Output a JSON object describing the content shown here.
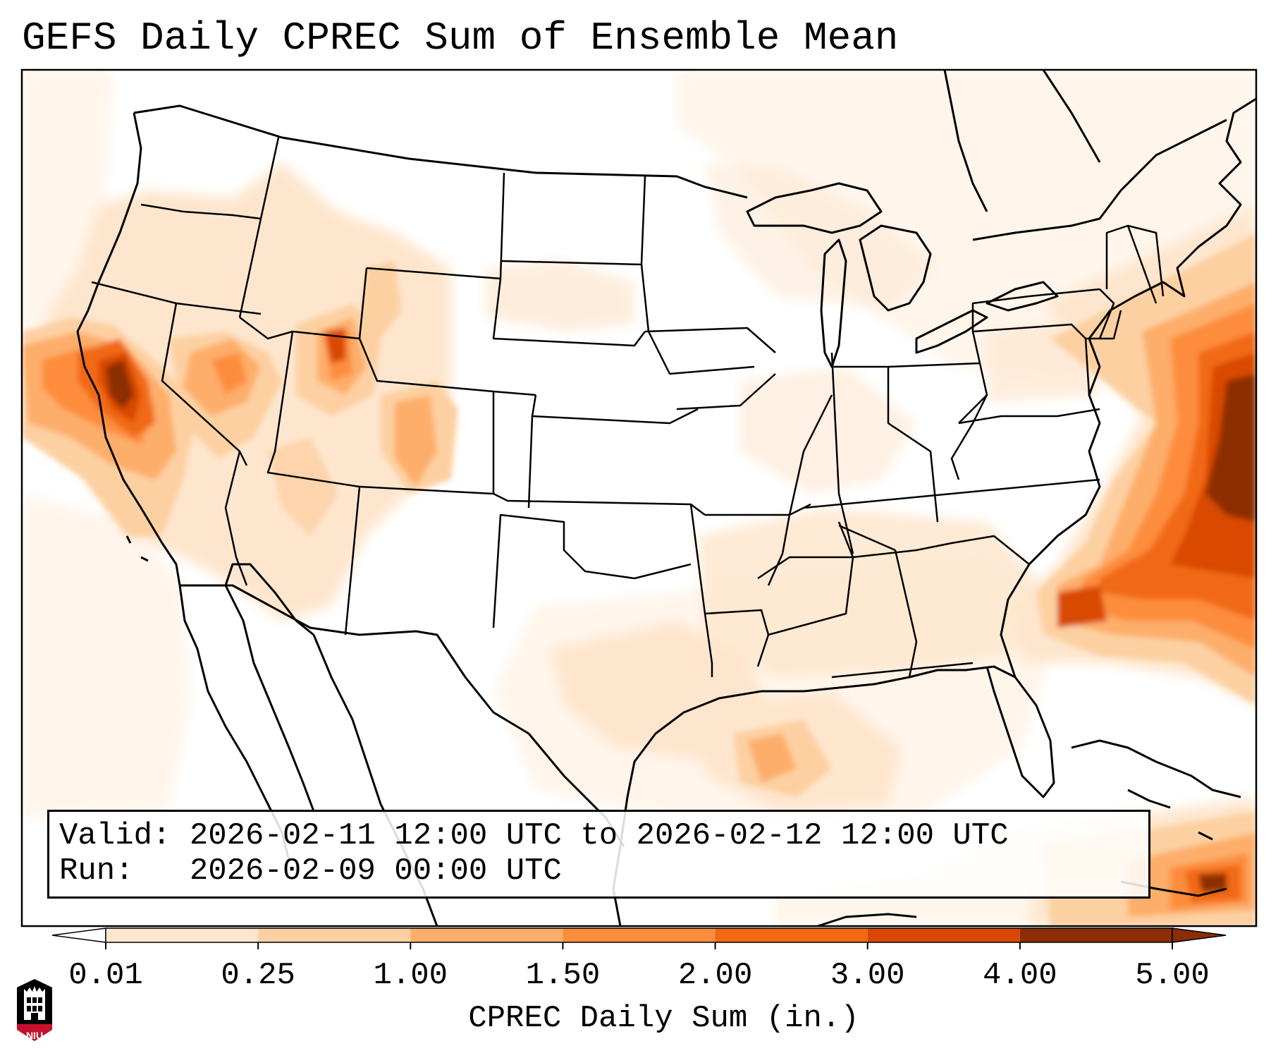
{
  "title": "GEFS Daily CPREC Sum of Ensemble Mean",
  "info": {
    "valid_label": "Valid:",
    "valid_value": "2026-02-11 12:00 UTC to 2026-02-12 12:00 UTC",
    "run_label": "Run:",
    "run_value": "2026-02-09 00:00 UTC"
  },
  "colorbar": {
    "label": "CPREC Daily Sum (in.)",
    "ticks": [
      "0.01",
      "0.25",
      "1.00",
      "1.50",
      "2.00",
      "3.00",
      "4.00",
      "5.00"
    ],
    "colors": [
      "#fff5eb",
      "#fee6ce",
      "#fdd0a2",
      "#fdae6b",
      "#fd8d3c",
      "#f16913",
      "#d94801",
      "#8c2d04"
    ]
  },
  "logo": {
    "text": "NIU",
    "color": "#c8102e"
  },
  "colors": {
    "land_outline": "#000000",
    "background": "#ffffff"
  }
}
